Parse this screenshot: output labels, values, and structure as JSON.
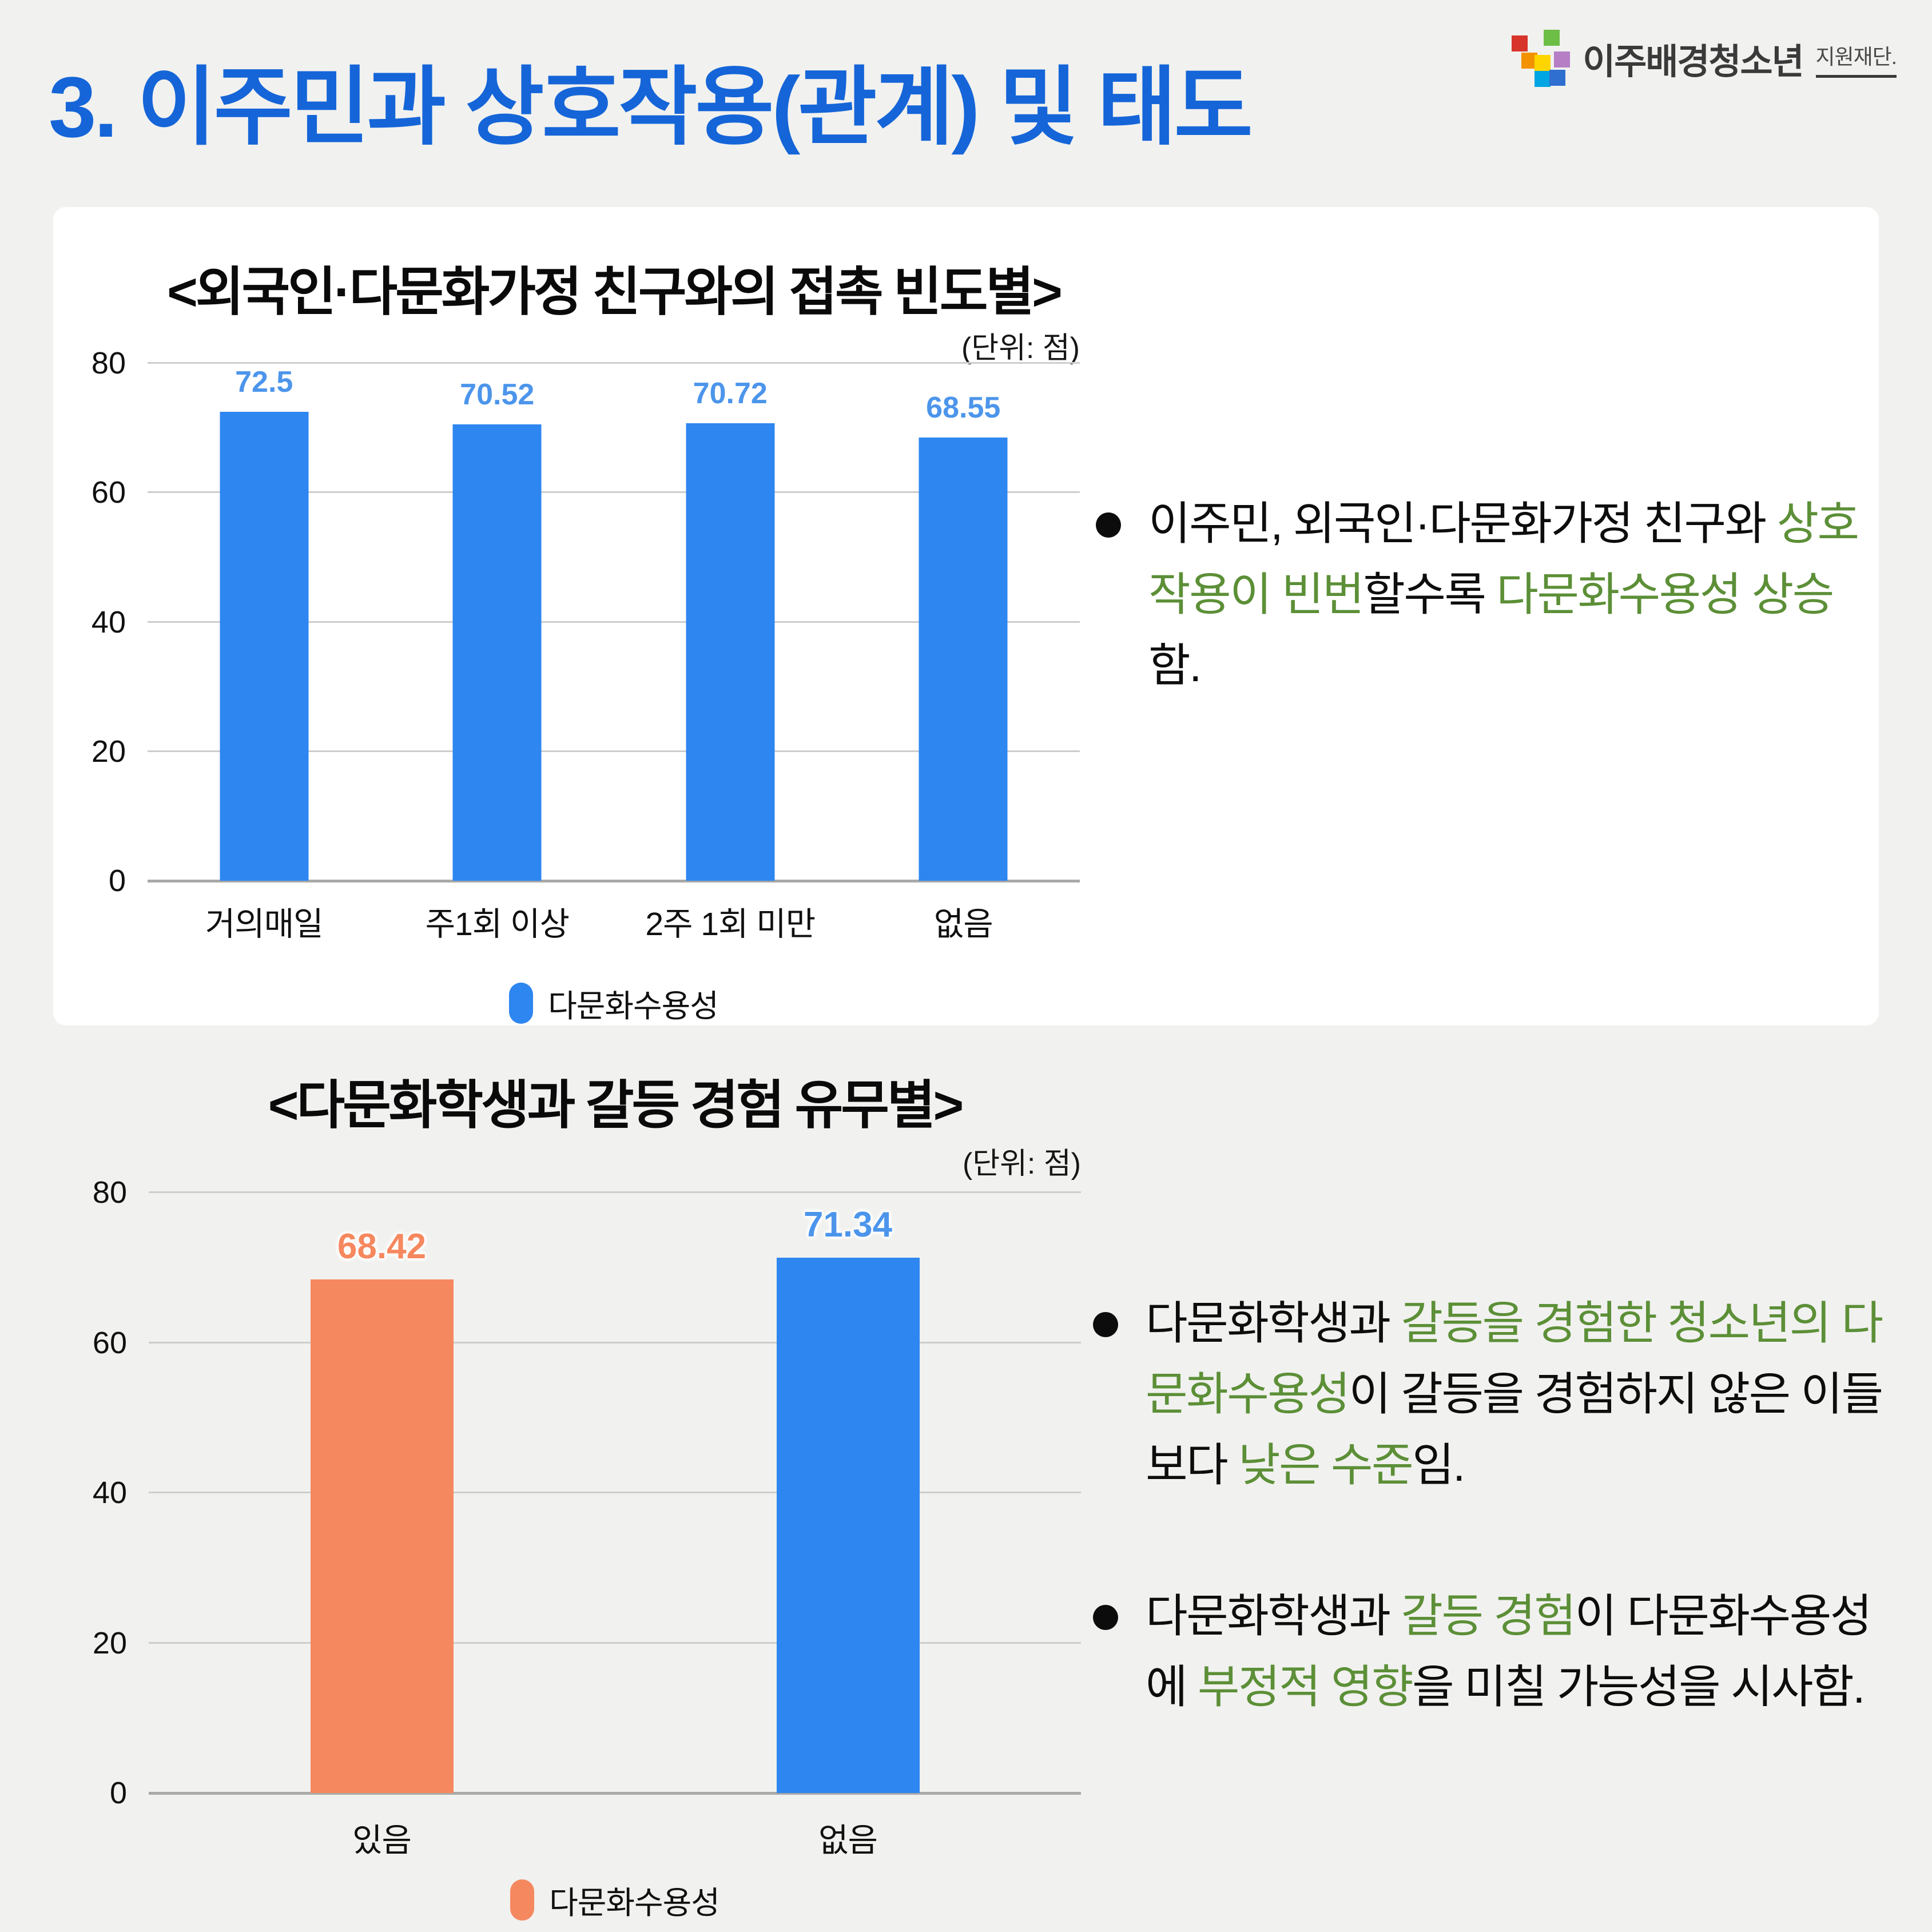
{
  "page_title": {
    "text": "3. 이주민과 상호작용(관계) 및 태도",
    "color": "#1565D8"
  },
  "logo": {
    "name": "이주배경청소년",
    "suffix": "지원재단.",
    "square_colors": [
      "#D7352B",
      "#6CBE45",
      "#F29200",
      "#FFD500",
      "#B57EC5",
      "#00A5E3",
      "#2F6FD0"
    ]
  },
  "chart_data": [
    {
      "type": "bar",
      "title": "<외국인·다문화가정 친구와의 접촉 빈도별>",
      "unit_label": "(단위: 점)",
      "categories": [
        "거의매일",
        "주1회 이상",
        "2주 1회 미만",
        "없음"
      ],
      "values": [
        72.5,
        70.52,
        70.72,
        68.55
      ],
      "value_labels": [
        "72.5",
        "70.52",
        "70.72",
        "68.55"
      ],
      "bar_colors": [
        "#2E86F0",
        "#2E86F0",
        "#2E86F0",
        "#2E86F0"
      ],
      "value_label_colors": [
        "#4C95EB",
        "#4C95EB",
        "#4C95EB",
        "#4C95EB"
      ],
      "ylim": [
        0,
        80
      ],
      "yticks": [
        80,
        60,
        40,
        20,
        0
      ],
      "grid": true,
      "legend": {
        "label": "다문화수용성",
        "color": "#2E86F0",
        "position": "bottom"
      }
    },
    {
      "type": "bar",
      "title": "<다문화학생과 갈등 경험 유무별>",
      "unit_label": "(단위: 점)",
      "categories": [
        "있음",
        "없음"
      ],
      "values": [
        68.42,
        71.34
      ],
      "value_labels": [
        "68.42",
        "71.34"
      ],
      "bar_colors": [
        "#F6885F",
        "#2E86F0"
      ],
      "value_label_colors": [
        "#F6885F",
        "#4C95EB"
      ],
      "ylim": [
        0,
        80
      ],
      "yticks": [
        80,
        60,
        40,
        20,
        0
      ],
      "grid": true,
      "legend": {
        "label": "다문화수용성",
        "color": "#F6885F",
        "position": "bottom"
      }
    }
  ],
  "insights": [
    {
      "bullets": [
        {
          "segments": [
            {
              "t": "이주민, 외국인·다문화가정 친구와 "
            },
            {
              "t": "상호작용이 빈번",
              "g": true
            },
            {
              "t": "할수록 "
            },
            {
              "t": "다문화수용성 상승",
              "g": true
            },
            {
              "t": "함."
            }
          ]
        }
      ]
    },
    {
      "bullets": [
        {
          "segments": [
            {
              "t": "다문화학생과 "
            },
            {
              "t": "갈등을 경험한 청소년의 다문화수용성",
              "g": true
            },
            {
              "t": "이 갈등을 경험하지 않은 이들보다 "
            },
            {
              "t": "낮은 수준",
              "g": true
            },
            {
              "t": "임."
            }
          ]
        },
        {
          "segments": [
            {
              "t": "다문화학생과 "
            },
            {
              "t": "갈등 경험",
              "g": true
            },
            {
              "t": "이 다문화수용성에 "
            },
            {
              "t": "부정적 영향",
              "g": true
            },
            {
              "t": "을 미칠 가능성을 시사함."
            }
          ]
        }
      ]
    }
  ],
  "colors": {
    "page_bg": "#F1F1EF",
    "card_bg": "#FFFFFF",
    "title_blue": "#1565D8",
    "ink": "#0D0D0D",
    "grid": "#CDCDCB",
    "axis": "#A9A9A7",
    "green": "#5C8F37",
    "bar_blue": "#2E86F0",
    "bar_orange": "#F6885F"
  }
}
